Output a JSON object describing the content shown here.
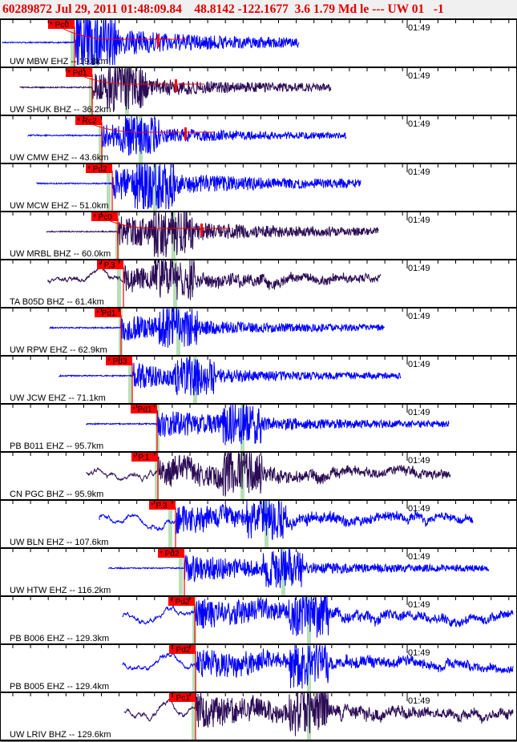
{
  "header": {
    "title": "60289872 Jul 29, 2011 01:48:09.84    48.8142 -122.1677  3.6 1.79 Md le --- UW 01   -1"
  },
  "time_mark": "01:49",
  "colors": {
    "short_period": "#0000ff",
    "broadband": "#2b0b55",
    "pick": "#ff0000",
    "s_marker": "#b8e0b8"
  },
  "traces": [
    {
      "station": "UW MBW EHZ -- 19.8km",
      "pick": "* Pc0",
      "channel": "EHZ"
    },
    {
      "station": "UW SHUK BHZ -- 36.2km",
      "pick": "* Pd1",
      "channel": "BHZ"
    },
    {
      "station": "UW CMW EHZ -- 43.6km",
      "pick": "* Rc2",
      "channel": "EHZ"
    },
    {
      "station": "UW MCW EHZ -- 51.0km",
      "pick": "* Pd2",
      "channel": "EHZ"
    },
    {
      "station": "UW MRBL BHZ -- 60.0km",
      "pick": "* Pc0",
      "channel": "BHZ"
    },
    {
      "station": "TA B05D BHZ -- 61.4km",
      "pick": "* P.3",
      "channel": "BHZ"
    },
    {
      "station": "UW RPW EHZ -- 62.9km",
      "pick": "* Pd1",
      "channel": "EHZ"
    },
    {
      "station": "UW JCW EHZ -- 71.1km",
      "pick": "* Pd3",
      "channel": "EHZ"
    },
    {
      "station": "PB B011 EHZ -- 95.7km",
      "pick": "* Pd1",
      "channel": "EHZ"
    },
    {
      "station": "CN PGC BHZ -- 95.9km",
      "pick": "* P.1",
      "channel": "BHZ"
    },
    {
      "station": "UW BLN EHZ -- 107.6km",
      "pick": "* P.3",
      "channel": "EHZ"
    },
    {
      "station": "UW HTW EHZ -- 116.2km",
      "pick": "* Pd2",
      "channel": "EHZ"
    },
    {
      "station": "PB B006 EHZ -- 129.3km",
      "pick": "* Pd2",
      "channel": "EHZ"
    },
    {
      "station": "PB B005 EHZ -- 129.4km",
      "pick": "* Pd2",
      "channel": "EHZ"
    },
    {
      "station": "UW LRIV BHZ -- 129.6km",
      "pick": "* Pc1",
      "channel": "BHZ"
    }
  ]
}
